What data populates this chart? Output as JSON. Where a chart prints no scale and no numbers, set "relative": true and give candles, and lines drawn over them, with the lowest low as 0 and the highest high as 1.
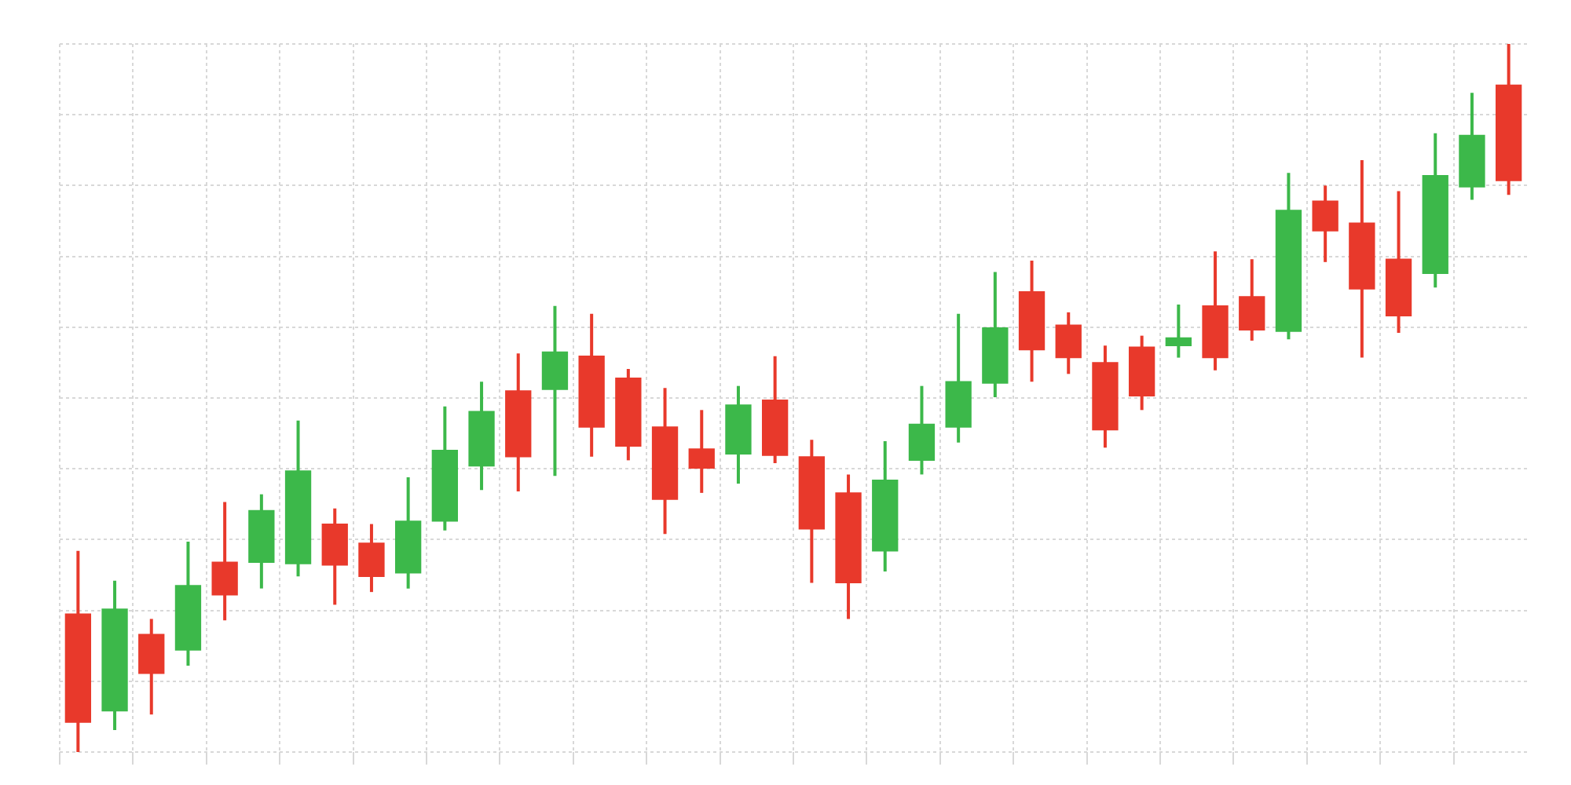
{
  "chart_data": {
    "type": "candlestick",
    "relative": true,
    "grid": true,
    "categories": [
      null,
      null,
      null,
      null,
      null,
      null,
      null,
      null,
      null,
      null,
      null,
      null,
      null,
      null,
      null,
      null,
      null,
      null,
      null,
      null,
      null,
      null,
      null,
      null,
      null,
      null,
      null,
      null,
      null,
      null,
      null,
      null,
      null,
      null,
      null,
      null,
      null,
      null,
      null,
      null
    ],
    "ohlc": [
      [
        0.195,
        0.284,
        0,
        0.042
      ],
      [
        0.058,
        0.242,
        0.031,
        0.202
      ],
      [
        0.166,
        0.188,
        0.053,
        0.111
      ],
      [
        0.144,
        0.297,
        0.122,
        0.235
      ],
      [
        0.268,
        0.353,
        0.186,
        0.222
      ],
      [
        0.268,
        0.364,
        0.231,
        0.341
      ],
      [
        0.266,
        0.468,
        0.248,
        0.397
      ],
      [
        0.322,
        0.344,
        0.208,
        0.264
      ],
      [
        0.295,
        0.322,
        0.226,
        0.248
      ],
      [
        0.253,
        0.388,
        0.231,
        0.326
      ],
      [
        0.326,
        0.488,
        0.313,
        0.426
      ],
      [
        0.404,
        0.523,
        0.37,
        0.481
      ],
      [
        0.51,
        0.563,
        0.368,
        0.417
      ],
      [
        0.512,
        0.63,
        0.39,
        0.565
      ],
      [
        0.559,
        0.619,
        0.417,
        0.459
      ],
      [
        0.528,
        0.541,
        0.412,
        0.432
      ],
      [
        0.459,
        0.514,
        0.308,
        0.357
      ],
      [
        0.428,
        0.483,
        0.366,
        0.401
      ],
      [
        0.421,
        0.517,
        0.379,
        0.49
      ],
      [
        0.497,
        0.559,
        0.408,
        0.419
      ],
      [
        0.417,
        0.441,
        0.239,
        0.315
      ],
      [
        0.366,
        0.392,
        0.188,
        0.239
      ],
      [
        0.284,
        0.439,
        0.255,
        0.384
      ],
      [
        0.412,
        0.517,
        0.392,
        0.463
      ],
      [
        0.459,
        0.619,
        0.437,
        0.523
      ],
      [
        0.521,
        0.678,
        0.501,
        0.599
      ],
      [
        0.65,
        0.694,
        0.523,
        0.568
      ],
      [
        0.603,
        0.621,
        0.534,
        0.557
      ],
      [
        0.55,
        0.574,
        0.43,
        0.455
      ],
      [
        0.572,
        0.588,
        0.483,
        0.503
      ],
      [
        0.574,
        0.632,
        0.557,
        0.585
      ],
      [
        0.63,
        0.707,
        0.539,
        0.557
      ],
      [
        0.643,
        0.696,
        0.581,
        0.596
      ],
      [
        0.594,
        0.818,
        0.583,
        0.765
      ],
      [
        0.778,
        0.8,
        0.692,
        0.736
      ],
      [
        0.747,
        0.836,
        0.557,
        0.654
      ],
      [
        0.696,
        0.792,
        0.592,
        0.616
      ],
      [
        0.676,
        0.874,
        0.656,
        0.814
      ],
      [
        0.798,
        0.931,
        0.78,
        0.871
      ],
      [
        0.942,
        1,
        0.787,
        0.807
      ]
    ],
    "colors": [
      "#e8392b",
      "#3cb84a",
      "#e8392b",
      "#3cb84a",
      "#e8392b",
      "#3cb84a",
      "#3cb84a",
      "#e8392b",
      "#e8392b",
      "#3cb84a",
      "#3cb84a",
      "#3cb84a",
      "#e8392b",
      "#3cb84a",
      "#e8392b",
      "#e8392b",
      "#e8392b",
      "#e8392b",
      "#3cb84a",
      "#e8392b",
      "#e8392b",
      "#e8392b",
      "#3cb84a",
      "#3cb84a",
      "#3cb84a",
      "#3cb84a",
      "#e8392b",
      "#e8392b",
      "#e8392b",
      "#e8392b",
      "#3cb84a",
      "#e8392b",
      "#e8392b",
      "#3cb84a",
      "#e8392b",
      "#e8392b",
      "#e8392b",
      "#3cb84a",
      "#3cb84a",
      "#e8392b"
    ]
  }
}
